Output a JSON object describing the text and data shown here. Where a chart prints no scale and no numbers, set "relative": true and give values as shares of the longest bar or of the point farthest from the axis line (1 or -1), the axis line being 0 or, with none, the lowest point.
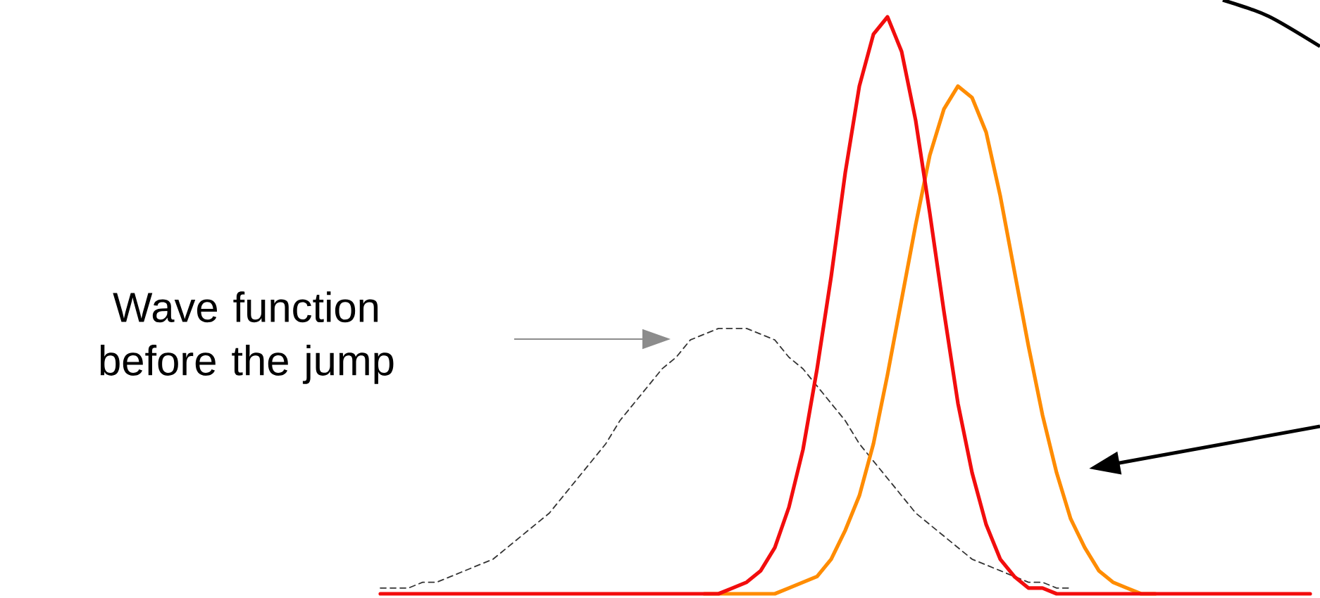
{
  "chart_data": {
    "type": "line",
    "relative": true,
    "marker": "none",
    "categories": [
      null,
      null,
      null,
      null,
      null,
      null,
      null,
      null,
      null,
      null,
      null,
      null,
      null,
      null,
      null,
      null,
      null,
      null,
      null,
      null,
      null,
      null,
      null,
      null,
      null,
      null,
      null,
      null,
      null,
      null,
      null,
      null,
      null,
      null,
      null,
      null,
      null,
      null,
      null,
      null,
      null,
      null,
      null,
      null,
      null,
      null,
      null,
      null,
      null,
      null,
      null,
      null,
      null,
      null,
      null,
      null,
      null,
      null,
      null,
      null,
      null,
      null,
      null,
      null,
      null,
      null,
      null
    ],
    "annotations": [
      "Wave function before the jump"
    ],
    "series": [
      {
        "color": "#333333",
        "line_style": "dashed",
        "values": [
          0.01,
          0.01,
          0.01,
          0.02,
          0.02,
          0.03,
          0.04,
          0.05,
          0.06,
          0.08,
          0.1,
          0.12,
          0.14,
          0.17,
          0.2,
          0.23,
          0.26,
          0.3,
          0.33,
          0.36,
          0.39,
          0.41,
          0.44,
          0.45,
          0.46,
          0.46,
          0.46,
          0.45,
          0.44,
          0.41,
          0.39,
          0.36,
          0.33,
          0.3,
          0.26,
          0.23,
          0.2,
          0.17,
          0.14,
          0.12,
          0.1,
          0.08,
          0.06,
          0.05,
          0.04,
          0.03,
          0.02,
          0.02,
          0.01,
          0.01,
          null,
          null,
          null,
          null,
          null,
          null,
          null,
          null,
          null,
          null,
          null,
          null,
          null,
          null,
          null,
          null,
          null
        ]
      },
      {
        "color": "#ff8c00",
        "line_style": "solid",
        "values": [
          null,
          null,
          null,
          null,
          null,
          null,
          null,
          null,
          null,
          null,
          null,
          null,
          null,
          null,
          null,
          null,
          null,
          null,
          null,
          null,
          null,
          null,
          null,
          0,
          0,
          0,
          0,
          0,
          0,
          0.01,
          0.02,
          0.03,
          0.06,
          0.11,
          0.17,
          0.26,
          0.38,
          0.51,
          0.64,
          0.76,
          0.84,
          0.88,
          0.86,
          0.8,
          0.69,
          0.56,
          0.43,
          0.31,
          0.21,
          0.13,
          0.08,
          0.04,
          0.02,
          0.01,
          0,
          0,
          null,
          null,
          null,
          null,
          null,
          null,
          null,
          null,
          null,
          null,
          null
        ]
      },
      {
        "color": "#f20d0d",
        "line_style": "solid",
        "values": [
          0,
          0,
          0,
          0,
          0,
          0,
          0,
          0,
          0,
          0,
          0,
          0,
          0,
          0,
          0,
          0,
          0,
          0,
          0,
          0,
          0,
          0,
          0,
          0,
          0,
          0.01,
          0.02,
          0.04,
          0.08,
          0.15,
          0.25,
          0.39,
          0.55,
          0.73,
          0.88,
          0.97,
          1,
          0.94,
          0.82,
          0.66,
          0.49,
          0.33,
          0.21,
          0.12,
          0.06,
          0.03,
          0.01,
          0.01,
          0,
          0,
          0,
          0,
          0,
          0,
          0,
          0,
          0,
          0,
          0,
          0,
          0,
          0,
          0,
          0,
          0,
          0,
          0
        ]
      }
    ]
  }
}
